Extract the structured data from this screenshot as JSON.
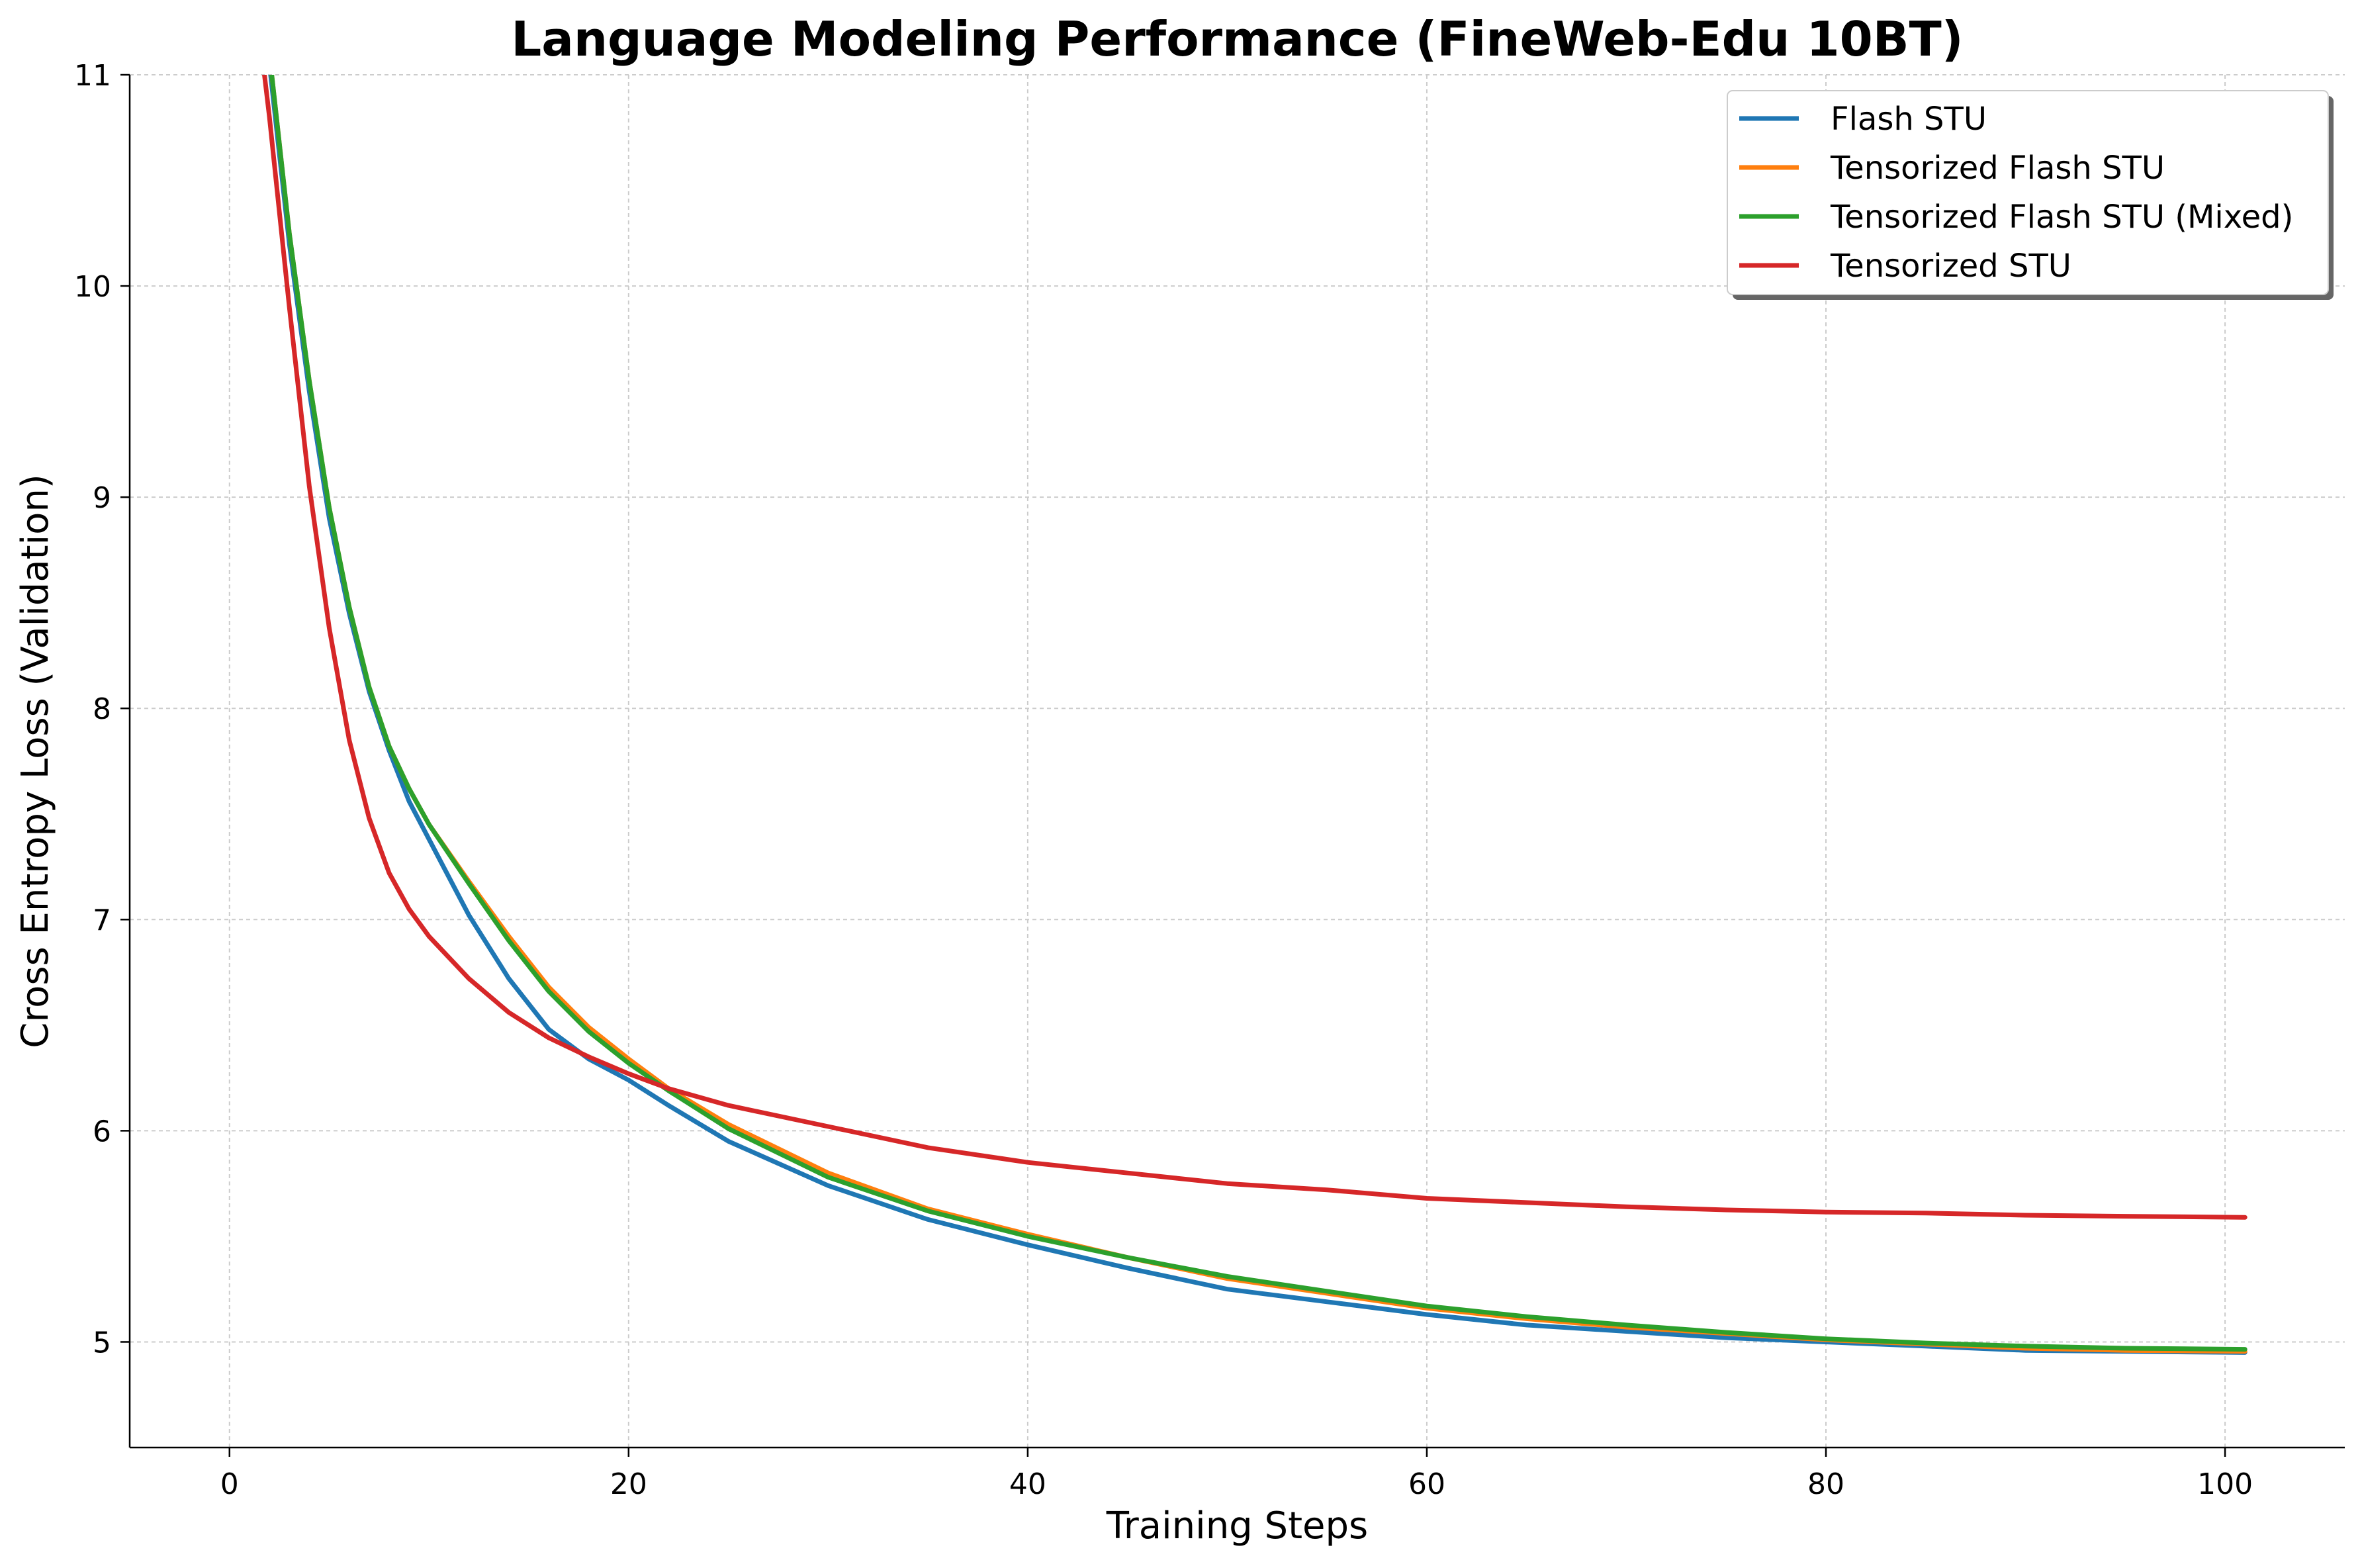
{
  "chart_data": {
    "type": "line",
    "title": "Language Modeling Performance (FineWeb-Edu 10BT)",
    "xlabel": "Training Steps",
    "ylabel": "Cross Entropy Loss (Validation)",
    "xlim": [
      -5,
      106
    ],
    "ylim": [
      4.5,
      11
    ],
    "xticks": [
      0,
      20,
      40,
      60,
      80,
      100
    ],
    "yticks": [
      5,
      6,
      7,
      8,
      9,
      10,
      11
    ],
    "xtick_labels": [
      "0",
      "20",
      "40",
      "60",
      "80",
      "100"
    ],
    "ytick_labels": [
      "5",
      "6",
      "7",
      "8",
      "9",
      "10",
      "11"
    ],
    "grid": true,
    "legend_position": "top-right",
    "x": [
      1,
      2,
      3,
      4,
      5,
      6,
      7,
      8,
      9,
      10,
      12,
      14,
      16,
      18,
      20,
      22,
      25,
      30,
      35,
      40,
      45,
      50,
      55,
      60,
      65,
      70,
      75,
      80,
      85,
      90,
      95,
      101
    ],
    "series": [
      {
        "name": "Flash STU",
        "color": "#1f77b4",
        "values": [
          12.0,
          11.05,
          10.2,
          9.5,
          8.9,
          8.45,
          8.08,
          7.8,
          7.56,
          7.38,
          7.02,
          6.72,
          6.48,
          6.34,
          6.24,
          6.12,
          5.95,
          5.74,
          5.58,
          5.46,
          5.35,
          5.25,
          5.19,
          5.13,
          5.08,
          5.05,
          5.02,
          5.0,
          4.98,
          4.96,
          4.955,
          4.95
        ]
      },
      {
        "name": "Tensorized Flash STU",
        "color": "#ff7f0e",
        "values": [
          12.0,
          11.1,
          10.25,
          9.55,
          8.95,
          8.48,
          8.1,
          7.82,
          7.62,
          7.45,
          7.18,
          6.92,
          6.68,
          6.49,
          6.34,
          6.2,
          6.03,
          5.8,
          5.63,
          5.51,
          5.4,
          5.3,
          5.23,
          5.16,
          5.11,
          5.07,
          5.04,
          5.01,
          4.99,
          4.97,
          4.96,
          4.955
        ]
      },
      {
        "name": "Tensorized Flash STU (Mixed)",
        "color": "#2ca02c",
        "values": [
          12.0,
          11.1,
          10.25,
          9.55,
          8.95,
          8.48,
          8.1,
          7.82,
          7.62,
          7.45,
          7.17,
          6.9,
          6.66,
          6.47,
          6.32,
          6.19,
          6.01,
          5.78,
          5.62,
          5.5,
          5.4,
          5.31,
          5.24,
          5.17,
          5.12,
          5.08,
          5.045,
          5.015,
          4.995,
          4.98,
          4.97,
          4.965
        ]
      },
      {
        "name": "Tensorized STU",
        "color": "#d62728",
        "values": [
          11.6,
          10.8,
          9.9,
          9.05,
          8.38,
          7.85,
          7.48,
          7.22,
          7.05,
          6.92,
          6.72,
          6.56,
          6.44,
          6.35,
          6.27,
          6.2,
          6.12,
          6.02,
          5.92,
          5.85,
          5.8,
          5.75,
          5.72,
          5.68,
          5.66,
          5.64,
          5.625,
          5.615,
          5.61,
          5.6,
          5.595,
          5.59
        ]
      }
    ]
  }
}
